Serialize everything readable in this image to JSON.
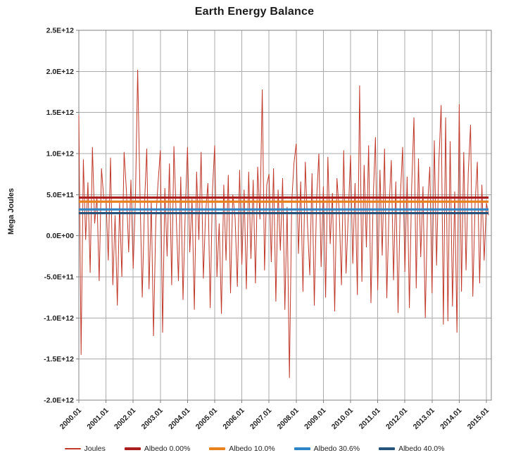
{
  "chart_data": {
    "type": "line",
    "title": "Earth Energy Balance",
    "ylabel": "Mega Joules",
    "xlabel": "",
    "grid": true,
    "legend_position": "bottom",
    "ylim": [
      -2000000000000.0,
      2500000000000.0
    ],
    "ytick_step": 500000000000.0,
    "ytick_labels": [
      "2.5E+12",
      "2.0E+12",
      "1.5E+12",
      "1.0E+12",
      "5.0E+11",
      "0.0E+00",
      "-5.0E+11",
      "-1.0E+12",
      "-1.5E+12",
      "-2.0E+12"
    ],
    "xtick_labels": [
      "2000.01",
      "2001.01",
      "2002.01",
      "2003.01",
      "2004.01",
      "2005.01",
      "2006.01",
      "2007.01",
      "2008.01",
      "2009.01",
      "2010.01",
      "2011.01",
      "2012.01",
      "2013.01",
      "2014.01",
      "2015.01"
    ],
    "x_start_label": "2000.01",
    "months_per_year": 12,
    "value_unit_multiplier": 100000000000.0,
    "series": [
      {
        "name": "Joules",
        "kind": "monthly-line",
        "color": "#C0392B",
        "width": 1,
        "values_e11": [
          14.7,
          -14.5,
          9.3,
          -0.5,
          6.5,
          -4.5,
          10.8,
          1.5,
          4.8,
          -5.5,
          8.2,
          4.5,
          4.7,
          -3.0,
          9.5,
          -6.0,
          2.5,
          -8.5,
          4.0,
          -5.0,
          10.2,
          5.5,
          -2.0,
          6.8,
          -4.0,
          4.5,
          20.2,
          5.0,
          -7.5,
          3.8,
          10.6,
          -6.5,
          4.2,
          -12.2,
          2.0,
          6.5,
          10.4,
          -11.8,
          5.8,
          -2.5,
          8.8,
          -6.0,
          10.9,
          2.5,
          -5.5,
          7.2,
          -7.8,
          3.0,
          10.8,
          -2.0,
          4.5,
          -9.0,
          7.8,
          -0.5,
          10.2,
          -5.2,
          2.8,
          6.4,
          -8.8,
          5.4,
          11.0,
          -5.0,
          1.5,
          -9.5,
          6.2,
          -3.0,
          7.4,
          -7.0,
          5.0,
          2.2,
          -6.2,
          8.0,
          -3.5,
          5.6,
          -6.5,
          7.8,
          -2.8,
          6.8,
          -5.8,
          8.4,
          2.0,
          17.8,
          -4.2,
          6.2,
          7.5,
          -3.2,
          8.2,
          -8.0,
          5.6,
          -1.8,
          7.0,
          -9.0,
          3.5,
          -17.3,
          4.0,
          8.8,
          11.2,
          -2.2,
          6.6,
          -6.8,
          9.0,
          1.2,
          -4.8,
          7.6,
          -8.5,
          4.4,
          10.0,
          -3.8,
          6.0,
          -7.5,
          9.6,
          -1.0,
          5.2,
          -9.2,
          7.0,
          3.0,
          -6.0,
          10.4,
          -4.6,
          2.6,
          9.8,
          -3.4,
          6.4,
          -7.2,
          18.3,
          -5.6,
          8.6,
          -1.4,
          11.0,
          -8.2,
          4.6,
          12.0,
          -6.6,
          8.0,
          -2.4,
          10.6,
          -7.6,
          3.4,
          9.2,
          -5.4,
          6.6,
          -9.4,
          4.8,
          10.8,
          -4.4,
          7.2,
          -8.8,
          5.8,
          14.4,
          -6.4,
          9.4,
          -2.6,
          6.0,
          -10.0,
          3.6,
          8.4,
          -7.0,
          11.6,
          -3.6,
          9.0,
          15.9,
          -10.8,
          14.4,
          -10.4,
          11.5,
          -8.6,
          5.4,
          -11.8,
          16.0,
          -6.8,
          10.2,
          -4.2,
          7.8,
          13.5,
          -7.4,
          3.8,
          9.0,
          -5.8,
          6.2,
          -3.0,
          4.0,
          2.5
        ]
      },
      {
        "name": "Albedo 0.00%",
        "kind": "hline",
        "color": "#AA1E1E",
        "width": 3.2,
        "value_e11": 4.65
      },
      {
        "name": "Albedo 10.0%",
        "kind": "hline",
        "color": "#E8821E",
        "width": 3.2,
        "value_e11": 4.15
      },
      {
        "name": "Albedo 30.6%",
        "kind": "hline",
        "color": "#2E86C8",
        "width": 3.2,
        "value_e11": 3.2
      },
      {
        "name": "Albedo 40.0%",
        "kind": "hline",
        "color": "#26547C",
        "width": 3.2,
        "value_e11": 2.75
      }
    ],
    "axis_colors": {
      "gridline": "#ABABAB",
      "border": "#808080",
      "tick": "#808080"
    }
  }
}
